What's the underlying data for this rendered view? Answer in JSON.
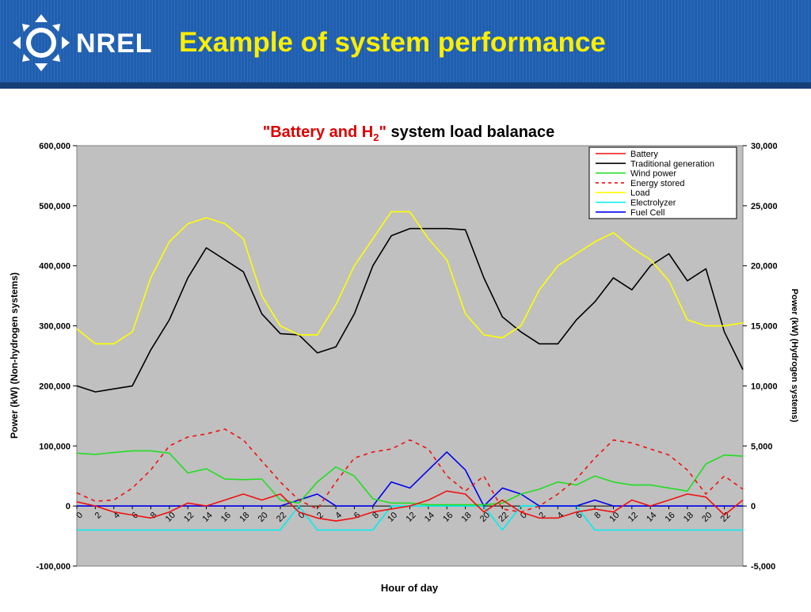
{
  "slide": {
    "title": "Example of system performance"
  },
  "logo": {
    "text": "NREL",
    "icon": "nrel-compass-icon"
  },
  "colors": {
    "header_bg": "#1f5fb0",
    "title": "#ffee00",
    "plot_bg": "#c0c0c0"
  },
  "chart_data": {
    "type": "line",
    "title_red": "\"Battery and H",
    "title_sub": "2",
    "title_red_end": "\"",
    "title_rest": " system load balanace",
    "xlabel": "Hour of day",
    "ylabel_left": "Power (kW) (Non-hydrogen systems)",
    "ylabel_right": "Power (kW) (Hydrogen systems)",
    "ylim_left": [
      -100000,
      600000
    ],
    "ylim_right": [
      -5000,
      30000
    ],
    "yticks_left": [
      "-100,000",
      "0",
      "100,000",
      "200,000",
      "300,000",
      "400,000",
      "500,000",
      "600,000"
    ],
    "yticks_right": [
      "-5,000",
      "0",
      "5,000",
      "10,000",
      "15,000",
      "20,000",
      "25,000",
      "30,000"
    ],
    "x_tick_labels": [
      "0",
      "2",
      "4",
      "6",
      "8",
      "10",
      "12",
      "14",
      "16",
      "18",
      "20",
      "22",
      "0",
      "2",
      "4",
      "6",
      "8",
      "10",
      "12",
      "14",
      "16",
      "18",
      "20",
      "22",
      "0",
      "2",
      "4",
      "6",
      "8",
      "10",
      "12",
      "14",
      "16",
      "18",
      "20",
      "22"
    ],
    "grid": false,
    "legend_placement": "top-right",
    "x_hours": [
      0,
      2,
      4,
      6,
      8,
      10,
      12,
      14,
      16,
      18,
      20,
      22,
      24,
      26,
      28,
      30,
      32,
      34,
      36,
      38,
      40,
      42,
      44,
      46,
      48,
      50,
      52,
      54,
      56,
      58,
      60,
      62,
      64,
      66,
      68,
      70,
      72
    ],
    "series": [
      {
        "name": "Battery",
        "axis": "left",
        "color": "#ee1111",
        "dash": false,
        "values": [
          7000,
          0,
          -10000,
          -15000,
          -20000,
          -10000,
          5000,
          0,
          10000,
          20000,
          10000,
          20000,
          -10000,
          -20000,
          -25000,
          -20000,
          -10000,
          -5000,
          0,
          10000,
          25000,
          20000,
          -10000,
          10000,
          -10000,
          -20000,
          -20000,
          -10000,
          -5000,
          -10000,
          10000,
          0,
          10000,
          20000,
          15000,
          -15000,
          10000
        ]
      },
      {
        "name": "Traditional generation",
        "axis": "left",
        "color": "#000000",
        "dash": false,
        "values": [
          200000,
          190000,
          195000,
          200000,
          260000,
          310000,
          380000,
          430000,
          410000,
          390000,
          320000,
          287000,
          285000,
          255000,
          265000,
          320000,
          400000,
          450000,
          462000,
          462000,
          462000,
          460000,
          380000,
          315000,
          290000,
          270000,
          270000,
          310000,
          340000,
          380000,
          360000,
          400000,
          420000,
          375000,
          395000,
          290000,
          227000
        ]
      },
      {
        "name": "Wind power",
        "axis": "left",
        "color": "#22dd22",
        "dash": false,
        "values": [
          88000,
          86000,
          89000,
          92000,
          92000,
          88000,
          55000,
          62000,
          45000,
          44000,
          45000,
          10000,
          5000,
          40000,
          65000,
          50000,
          12000,
          5000,
          5000,
          2000,
          2000,
          2000,
          2000,
          5000,
          20000,
          28000,
          40000,
          35000,
          50000,
          40000,
          35000,
          35000,
          30000,
          25000,
          70000,
          85000,
          83000
        ]
      },
      {
        "name": "Energy stored",
        "axis": "left",
        "color": "#ee1111",
        "dash": true,
        "values": [
          22000,
          8000,
          10000,
          30000,
          60000,
          100000,
          115000,
          120000,
          128000,
          110000,
          75000,
          40000,
          10000,
          -5000,
          40000,
          80000,
          90000,
          95000,
          110000,
          95000,
          50000,
          25000,
          50000,
          -5000,
          -10000,
          0,
          20000,
          45000,
          80000,
          110000,
          105000,
          95000,
          85000,
          60000,
          20000,
          50000,
          28000
        ]
      },
      {
        "name": "Load",
        "axis": "left",
        "color": "#ffff00",
        "dash": false,
        "values": [
          295000,
          270000,
          270000,
          290000,
          380000,
          440000,
          470000,
          480000,
          470000,
          445000,
          350000,
          300000,
          285000,
          285000,
          335000,
          400000,
          445000,
          490000,
          490000,
          445000,
          410000,
          320000,
          285000,
          280000,
          300000,
          360000,
          400000,
          420000,
          440000,
          455000,
          430000,
          410000,
          375000,
          310000,
          300000,
          300000,
          305000
        ]
      },
      {
        "name": "Electrolyzer",
        "axis": "right",
        "color": "#00eeee",
        "dash": false,
        "values": [
          -2000,
          -2000,
          -2000,
          -2000,
          -2000,
          -2000,
          -2000,
          -2000,
          -2000,
          -2000,
          -2000,
          -2000,
          0,
          -2000,
          -2000,
          -2000,
          -2000,
          0,
          0,
          0,
          0,
          0,
          0,
          -2000,
          0,
          0,
          0,
          0,
          -2000,
          -2000,
          -2000,
          -2000,
          -2000,
          -2000,
          -2000,
          -2000,
          -2000
        ]
      },
      {
        "name": "Fuel Cell",
        "axis": "right",
        "color": "#0000ee",
        "dash": false,
        "values": [
          0,
          0,
          0,
          0,
          0,
          0,
          0,
          0,
          0,
          0,
          0,
          0,
          500,
          1000,
          0,
          0,
          0,
          2000,
          1500,
          3000,
          4500,
          3000,
          0,
          1500,
          1000,
          0,
          0,
          0,
          500,
          0,
          0,
          0,
          0,
          0,
          0,
          0,
          0
        ]
      }
    ]
  }
}
